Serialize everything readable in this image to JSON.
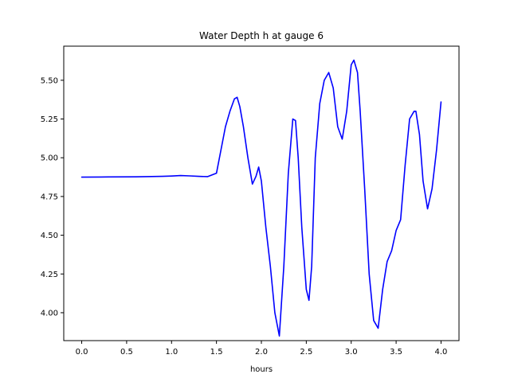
{
  "chart_data": {
    "type": "line",
    "title": "Water Depth h at gauge 6",
    "xlabel": "hours",
    "ylabel": "",
    "xlim": [
      -0.2,
      4.2
    ],
    "ylim": [
      3.82,
      5.72
    ],
    "grid": false,
    "x_ticks": [
      {
        "value": 0.0,
        "label": "0.0"
      },
      {
        "value": 0.5,
        "label": "0.5"
      },
      {
        "value": 1.0,
        "label": "1.0"
      },
      {
        "value": 1.5,
        "label": "1.5"
      },
      {
        "value": 2.0,
        "label": "2.0"
      },
      {
        "value": 2.5,
        "label": "2.5"
      },
      {
        "value": 3.0,
        "label": "3.0"
      },
      {
        "value": 3.5,
        "label": "3.5"
      },
      {
        "value": 4.0,
        "label": "4.0"
      }
    ],
    "y_ticks": [
      {
        "value": 4.0,
        "label": "4.00"
      },
      {
        "value": 4.25,
        "label": "4.25"
      },
      {
        "value": 4.5,
        "label": "4.50"
      },
      {
        "value": 4.75,
        "label": "4.75"
      },
      {
        "value": 5.0,
        "label": "5.00"
      },
      {
        "value": 5.25,
        "label": "5.25"
      },
      {
        "value": 5.5,
        "label": "5.50"
      }
    ],
    "series": [
      {
        "color": "#0000ff",
        "x": [
          0.0,
          0.3,
          0.6,
          0.9,
          1.0,
          1.1,
          1.2,
          1.3,
          1.4,
          1.5,
          1.55,
          1.6,
          1.65,
          1.7,
          1.73,
          1.76,
          1.8,
          1.85,
          1.9,
          1.94,
          1.97,
          2.0,
          2.05,
          2.1,
          2.15,
          2.2,
          2.25,
          2.3,
          2.35,
          2.38,
          2.41,
          2.45,
          2.5,
          2.53,
          2.56,
          2.6,
          2.65,
          2.7,
          2.75,
          2.8,
          2.85,
          2.9,
          2.95,
          3.0,
          3.03,
          3.07,
          3.1,
          3.15,
          3.2,
          3.25,
          3.3,
          3.35,
          3.4,
          3.45,
          3.5,
          3.55,
          3.6,
          3.65,
          3.7,
          3.72,
          3.76,
          3.8,
          3.85,
          3.9,
          3.95,
          4.0
        ],
        "y": [
          4.875,
          4.876,
          4.877,
          4.88,
          4.882,
          4.885,
          4.883,
          4.88,
          4.878,
          4.9,
          5.05,
          5.2,
          5.3,
          5.38,
          5.39,
          5.33,
          5.2,
          5.0,
          4.83,
          4.88,
          4.94,
          4.85,
          4.55,
          4.3,
          4.0,
          3.85,
          4.3,
          4.9,
          5.25,
          5.24,
          5.0,
          4.55,
          4.15,
          4.08,
          4.3,
          5.0,
          5.35,
          5.5,
          5.55,
          5.45,
          5.2,
          5.12,
          5.3,
          5.6,
          5.63,
          5.55,
          5.3,
          4.8,
          4.25,
          3.95,
          3.9,
          4.15,
          4.33,
          4.4,
          4.53,
          4.6,
          4.95,
          5.25,
          5.3,
          5.3,
          5.15,
          4.85,
          4.67,
          4.8,
          5.05,
          5.36
        ]
      }
    ]
  }
}
